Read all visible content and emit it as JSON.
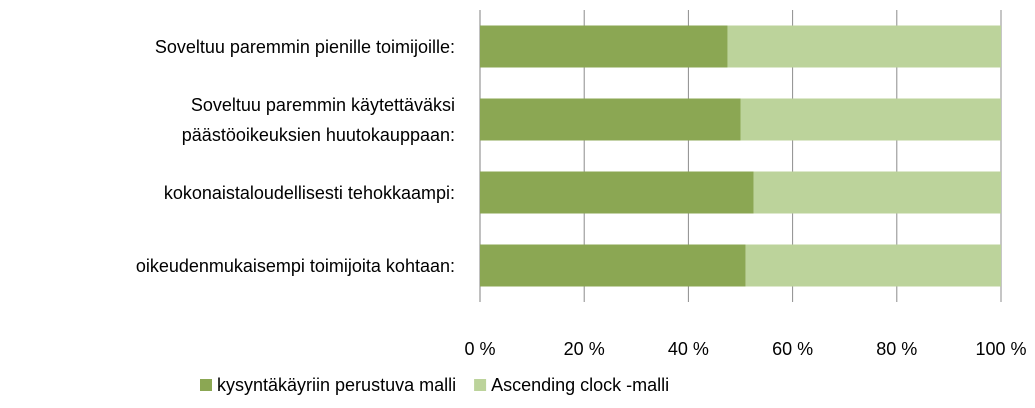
{
  "chart_data": {
    "type": "stacked-bar-horizontal",
    "categories": [
      "Soveltuu paremmin pienille toimijoille:",
      "Soveltuu paremmin käytettäväksi \npäästöoikeuksien huutokauppaan:",
      "kokonaistaloudellisesti tehokkaampi:",
      "oikeudenmukaisempi toimijoita kohtaan:"
    ],
    "series": [
      {
        "name": "kysyntäkäyriin perustuva malli",
        "color": "#8ba753",
        "values": [
          47.5,
          50,
          52.5,
          51
        ]
      },
      {
        "name": "Ascending clock -malli",
        "color": "#bcd39b",
        "values": [
          52.5,
          50,
          47.5,
          49
        ]
      }
    ],
    "xlim": [
      0,
      100
    ],
    "xticks": [
      {
        "value": 0,
        "label": "0 %"
      },
      {
        "value": 20,
        "label": "20 %"
      },
      {
        "value": 40,
        "label": "40 %"
      },
      {
        "value": 60,
        "label": "60 %"
      },
      {
        "value": 80,
        "label": "80 %"
      },
      {
        "value": 100,
        "label": "100 %"
      }
    ],
    "grid": true,
    "legend": "bottom"
  }
}
